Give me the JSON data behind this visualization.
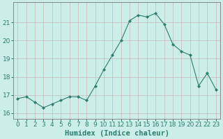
{
  "x": [
    0,
    1,
    2,
    3,
    4,
    5,
    6,
    7,
    8,
    9,
    10,
    11,
    12,
    13,
    14,
    15,
    16,
    17,
    18,
    19,
    20,
    21,
    22,
    23
  ],
  "y": [
    16.8,
    16.9,
    16.6,
    16.3,
    16.5,
    16.7,
    16.9,
    16.9,
    16.7,
    17.5,
    18.4,
    19.2,
    20.0,
    21.1,
    21.4,
    21.3,
    21.5,
    20.9,
    19.8,
    19.4,
    19.2,
    17.5,
    18.2,
    17.3
  ],
  "line_color": "#2e7d6e",
  "marker": "D",
  "marker_size": 2.0,
  "bg_color": "#cceee8",
  "grid_color": "#c8b8b8",
  "xlabel": "Humidex (Indice chaleur)",
  "ylim": [
    15.7,
    22.1
  ],
  "xlim": [
    -0.5,
    23.5
  ],
  "yticks": [
    16,
    17,
    18,
    19,
    20,
    21
  ],
  "xticks": [
    0,
    1,
    2,
    3,
    4,
    5,
    6,
    7,
    8,
    9,
    10,
    11,
    12,
    13,
    14,
    15,
    16,
    17,
    18,
    19,
    20,
    21,
    22,
    23
  ],
  "tick_color": "#2e7d6e",
  "label_fontsize": 7.5,
  "tick_fontsize": 6.5,
  "spine_color": "#888888"
}
